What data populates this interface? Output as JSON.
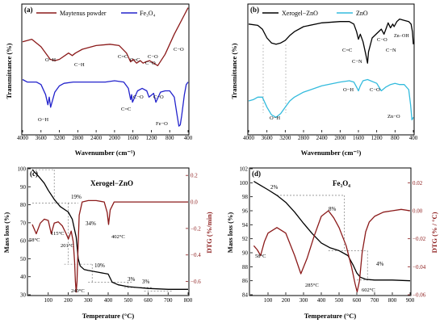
{
  "chart_data": [
    {
      "panel_label": "(a)",
      "type": "line",
      "xlabel": "Wavenumber (cm⁻¹)",
      "ylabel": "Transmittance (%)",
      "xlim": [
        4000,
        400
      ],
      "x_ticks": [
        "4000",
        "3600",
        "3200",
        "2800",
        "2400",
        "2000",
        "1600",
        "1200",
        "800",
        "400"
      ],
      "series": [
        {
          "name": "Maytenus powder",
          "color": "#8b1a1a",
          "x": [
            4000,
            3800,
            3600,
            3400,
            3300,
            3200,
            3000,
            2920,
            2850,
            2700,
            2400,
            2100,
            1900,
            1740,
            1650,
            1600,
            1520,
            1440,
            1380,
            1320,
            1240,
            1150,
            1060,
            900,
            800,
            700,
            600,
            500,
            400
          ],
          "y": [
            0.72,
            0.74,
            0.68,
            0.58,
            0.57,
            0.58,
            0.63,
            0.61,
            0.63,
            0.66,
            0.69,
            0.7,
            0.69,
            0.63,
            0.56,
            0.58,
            0.55,
            0.57,
            0.55,
            0.56,
            0.57,
            0.55,
            0.53,
            0.62,
            0.7,
            0.78,
            0.85,
            0.92,
            0.99
          ]
        },
        {
          "name": "Fe₃O₄",
          "color": "#2222cc",
          "x": [
            4000,
            3900,
            3700,
            3600,
            3500,
            3450,
            3420,
            3390,
            3300,
            3200,
            3100,
            2900,
            2700,
            2500,
            2350,
            2200,
            2000,
            1800,
            1700,
            1650,
            1630,
            1610,
            1500,
            1400,
            1300,
            1250,
            1150,
            1100,
            1000,
            900,
            800,
            700,
            640,
            600,
            570,
            540,
            480,
            440,
            400
          ],
          "y": [
            0.42,
            0.4,
            0.4,
            0.38,
            0.3,
            0.22,
            0.28,
            0.2,
            0.32,
            0.37,
            0.39,
            0.4,
            0.4,
            0.4,
            0.4,
            0.4,
            0.41,
            0.4,
            0.35,
            0.26,
            0.3,
            0.24,
            0.33,
            0.35,
            0.33,
            0.28,
            0.31,
            0.24,
            0.32,
            0.33,
            0.33,
            0.28,
            0.14,
            0.05,
            0.06,
            0.13,
            0.3,
            0.38,
            0.4
          ]
        }
      ],
      "annotations": [
        "O−H",
        "C−H",
        "C=C",
        "C=C",
        "C−O",
        "C−O",
        "C−O",
        "O−H",
        "C=C",
        "C−O",
        "C−O",
        "Fe−O"
      ]
    },
    {
      "panel_label": "(b)",
      "type": "line",
      "xlabel": "Wavenumber (cm⁻¹)",
      "ylabel": "Transmittance (%)",
      "xlim": [
        4000,
        400
      ],
      "x_ticks": [
        "4000",
        "3600",
        "3200",
        "2800",
        "2400",
        "2000",
        "1600",
        "1200",
        "800",
        "400"
      ],
      "series": [
        {
          "name": "Xerogel−ZnO",
          "color": "#000000",
          "x": [
            4000,
            3800,
            3700,
            3600,
            3500,
            3400,
            3300,
            3200,
            3100,
            3000,
            2800,
            2400,
            2000,
            1800,
            1700,
            1640,
            1600,
            1560,
            1500,
            1440,
            1400,
            1380,
            1300,
            1100,
            1040,
            1000,
            950,
            900,
            850,
            820,
            760,
            700,
            600,
            500,
            450,
            420,
            400
          ],
          "y": [
            0.86,
            0.85,
            0.82,
            0.75,
            0.71,
            0.7,
            0.71,
            0.73,
            0.77,
            0.8,
            0.84,
            0.87,
            0.88,
            0.88,
            0.86,
            0.8,
            0.74,
            0.78,
            0.72,
            0.62,
            0.55,
            0.64,
            0.75,
            0.82,
            0.78,
            0.82,
            0.87,
            0.83,
            0.86,
            0.84,
            0.88,
            0.9,
            0.89,
            0.88,
            0.86,
            0.8,
            0.7
          ]
        },
        {
          "name": "ZnO",
          "color": "#33bbdd",
          "x": [
            4000,
            3900,
            3800,
            3700,
            3600,
            3500,
            3400,
            3300,
            3200,
            3100,
            3000,
            2800,
            2400,
            2000,
            1800,
            1700,
            1640,
            1600,
            1560,
            1500,
            1400,
            1200,
            1100,
            1000,
            900,
            800,
            700,
            600,
            500,
            460,
            430,
            400
          ],
          "y": [
            0.25,
            0.26,
            0.28,
            0.28,
            0.2,
            0.14,
            0.12,
            0.15,
            0.2,
            0.25,
            0.28,
            0.32,
            0.37,
            0.4,
            0.41,
            0.4,
            0.36,
            0.33,
            0.37,
            0.41,
            0.42,
            0.39,
            0.33,
            0.36,
            0.38,
            0.39,
            0.38,
            0.38,
            0.34,
            0.22,
            0.1,
            0.12
          ]
        }
      ],
      "annotations": [
        "C=C",
        "C−N",
        "C−O",
        "C−N",
        "Zn−OH",
        "O−H",
        "O−H",
        "C−O",
        "Zn−O"
      ]
    },
    {
      "panel_label": "(c)",
      "type": "line",
      "title": "Xerogel−ZnO",
      "xlabel": "Temperature (°C)",
      "ylabel": "Mass loss (%)",
      "ylabel_right": "DTG (%/min)",
      "xlim": [
        0,
        800
      ],
      "ylim": [
        30,
        100
      ],
      "ylim_right": [
        -0.7,
        0.25
      ],
      "x_ticks": [
        100,
        200,
        300,
        400,
        500,
        600,
        700,
        800
      ],
      "y_ticks": [
        30,
        40,
        50,
        60,
        70,
        80,
        90,
        100
      ],
      "y_ticks_right": [
        "−0.6",
        "−0.4",
        "−0.2",
        "0.0",
        "0.2"
      ],
      "series": [
        {
          "name": "Mass loss",
          "color": "#000000",
          "axis": "left",
          "x": [
            20,
            50,
            80,
            100,
            130,
            160,
            200,
            220,
            240,
            250,
            260,
            280,
            300,
            350,
            400,
            420,
            450,
            500,
            550,
            600,
            700,
            800
          ],
          "y": [
            99.5,
            96,
            92,
            88,
            83,
            79,
            76,
            72,
            62,
            50,
            46,
            44,
            43.5,
            42.5,
            41.5,
            37,
            35.5,
            34.5,
            34,
            33.5,
            33,
            33
          ]
        },
        {
          "name": "DTG",
          "color": "#8b1a1a",
          "axis": "right",
          "x": [
            20,
            40,
            60,
            80,
            100,
            115,
            130,
            150,
            170,
            190,
            201,
            215,
            225,
            232,
            236,
            240,
            244,
            248,
            255,
            270,
            300,
            340,
            380,
            395,
            402,
            410,
            430,
            460,
            500,
            600,
            700,
            800
          ],
          "y": [
            -0.17,
            -0.24,
            -0.16,
            -0.13,
            -0.14,
            -0.24,
            -0.16,
            -0.15,
            -0.18,
            -0.24,
            -0.28,
            -0.22,
            -0.3,
            -0.45,
            -0.6,
            -0.68,
            -0.6,
            -0.4,
            -0.1,
            0.0,
            0.01,
            0.01,
            0.0,
            -0.08,
            -0.17,
            -0.06,
            0.0,
            0.0,
            0.0,
            0.0,
            0.0,
            0.0
          ]
        }
      ],
      "annotations": [
        "19%",
        "34%",
        "10%",
        "3%",
        "3%",
        "58°C",
        "115°C",
        "201°C",
        "240°C",
        "402°C"
      ]
    },
    {
      "panel_label": "(d)",
      "type": "line",
      "title": "Fe₃O₄",
      "xlabel": "Temperature (°C)",
      "ylabel": "Mass loss (%)",
      "ylabel_right": "DTG (% / °C)",
      "xlim": [
        0,
        900
      ],
      "ylim": [
        84,
        102
      ],
      "ylim_right": [
        -0.06,
        0.03
      ],
      "x_ticks": [
        100,
        200,
        300,
        400,
        500,
        600,
        700,
        800,
        900
      ],
      "y_ticks": [
        84,
        86,
        88,
        90,
        92,
        94,
        96,
        98,
        100,
        102
      ],
      "y_ticks_right": [
        "−0.06",
        "−0.04",
        "−0.02",
        "0.00",
        "0.02"
      ],
      "series": [
        {
          "name": "Mass loss",
          "color": "#000000",
          "axis": "left",
          "x": [
            20,
            60,
            100,
            150,
            200,
            250,
            300,
            350,
            400,
            450,
            500,
            550,
            580,
            600,
            620,
            650,
            700,
            800,
            900
          ],
          "y": [
            100.2,
            99.6,
            99.0,
            98.2,
            97.2,
            95.8,
            94.2,
            92.7,
            91.4,
            90.7,
            90.3,
            89.6,
            88.2,
            87.1,
            86.5,
            86.2,
            86.1,
            86.1,
            86.0
          ]
        },
        {
          "name": "DTG",
          "color": "#8b1a1a",
          "axis": "right",
          "x": [
            20,
            40,
            58,
            80,
            100,
            150,
            200,
            250,
            285,
            320,
            360,
            400,
            440,
            470,
            500,
            540,
            570,
            590,
            602,
            615,
            630,
            650,
            670,
            700,
            750,
            800,
            850,
            900
          ],
          "y": [
            -0.025,
            -0.028,
            -0.032,
            -0.022,
            -0.016,
            -0.012,
            -0.016,
            -0.032,
            -0.045,
            -0.034,
            -0.018,
            -0.004,
            0.0,
            -0.005,
            -0.012,
            -0.025,
            -0.04,
            -0.052,
            -0.058,
            -0.05,
            -0.03,
            -0.015,
            -0.008,
            -0.004,
            -0.001,
            0.0,
            0.001,
            0.0
          ]
        }
      ],
      "annotations": [
        "2%",
        "8%",
        "4%",
        "58°C",
        "285°C",
        "602°C"
      ]
    }
  ]
}
